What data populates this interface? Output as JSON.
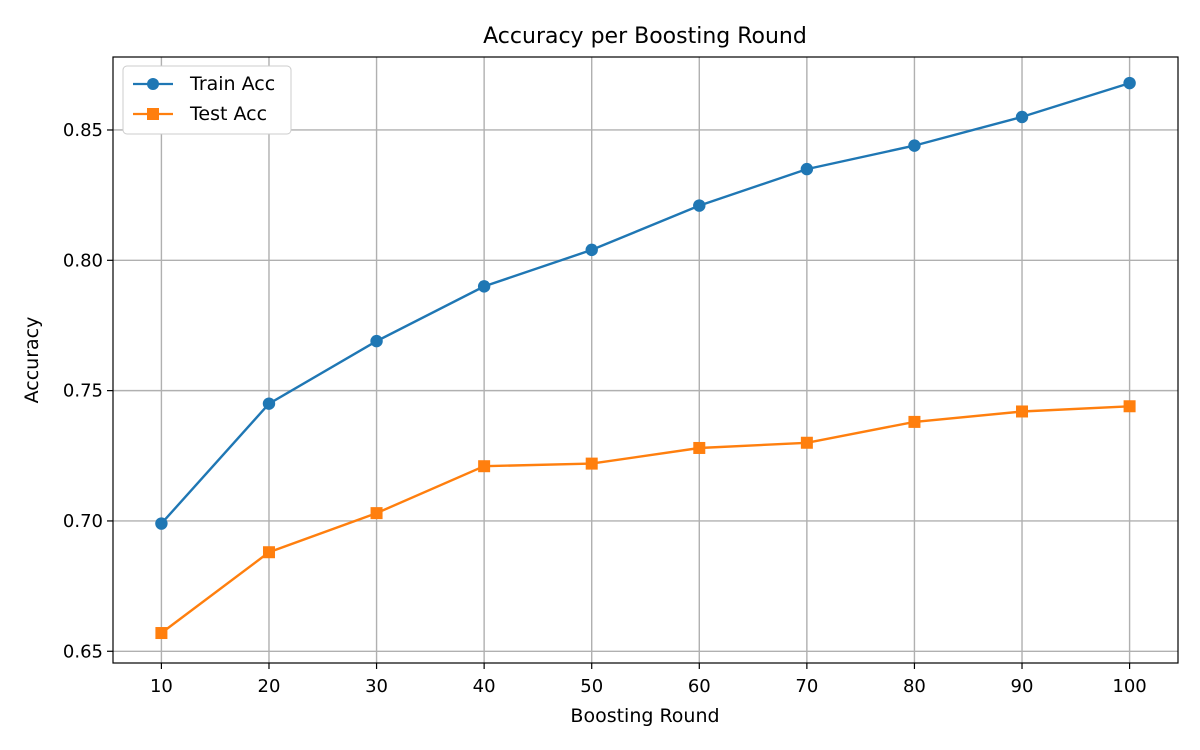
{
  "chart_data": {
    "type": "line",
    "title": "Accuracy per Boosting Round",
    "xlabel": "Boosting Round",
    "ylabel": "Accuracy",
    "x": [
      10,
      20,
      30,
      40,
      50,
      60,
      70,
      80,
      90,
      100
    ],
    "xlim": [
      5.5,
      104.5
    ],
    "ylim": [
      0.6455,
      0.878
    ],
    "xticks": [
      "10",
      "20",
      "30",
      "40",
      "50",
      "60",
      "70",
      "80",
      "90",
      "100"
    ],
    "yticks": [
      "0.65",
      "0.70",
      "0.75",
      "0.80",
      "0.85"
    ],
    "grid": true,
    "legend_position": "top-left",
    "series": [
      {
        "name": "Train Acc",
        "marker": "circle",
        "color": "#1f77b4",
        "values": [
          0.699,
          0.745,
          0.769,
          0.79,
          0.804,
          0.821,
          0.835,
          0.844,
          0.855,
          0.868
        ]
      },
      {
        "name": "Test Acc",
        "marker": "square",
        "color": "#ff7f0e",
        "values": [
          0.657,
          0.688,
          0.703,
          0.721,
          0.722,
          0.728,
          0.73,
          0.738,
          0.742,
          0.744
        ]
      }
    ]
  }
}
